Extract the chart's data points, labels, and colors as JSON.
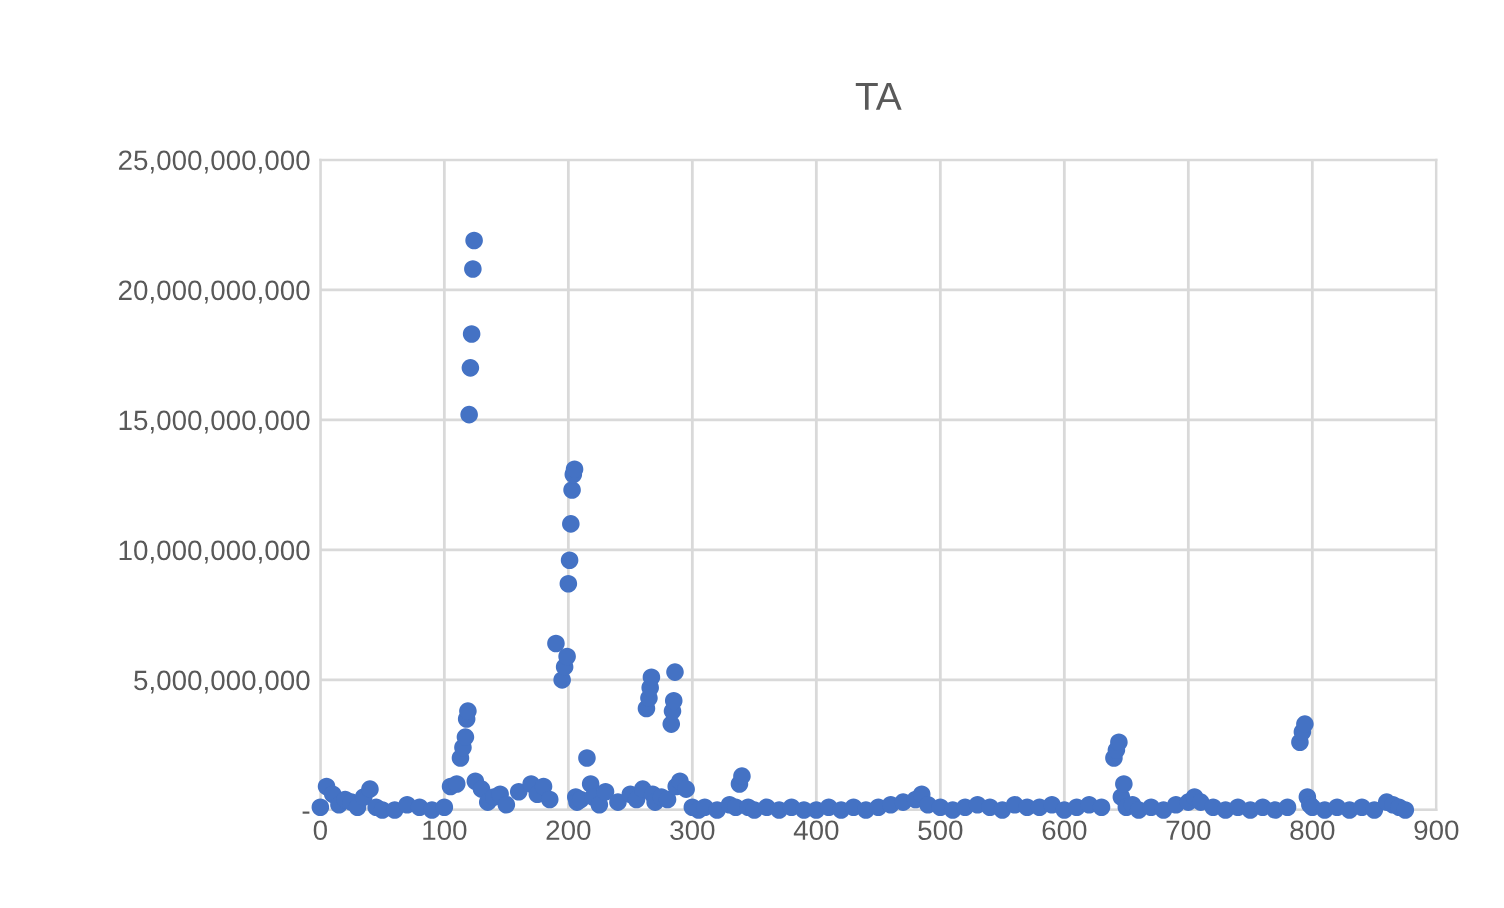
{
  "chart_data": {
    "type": "scatter",
    "title": "TA",
    "series": [
      {
        "color": "#4472c4",
        "x": [
          0,
          5,
          10,
          15,
          20,
          25,
          30,
          35,
          40,
          45,
          50,
          60,
          70,
          80,
          90,
          100,
          105,
          110,
          113,
          115,
          117,
          118,
          119,
          120,
          121,
          122,
          123,
          124,
          125,
          130,
          135,
          140,
          145,
          150,
          160,
          170,
          175,
          180,
          185,
          190,
          195,
          197,
          199,
          200,
          201,
          202,
          203,
          204,
          205,
          206,
          207,
          210,
          215,
          218,
          220,
          225,
          230,
          240,
          250,
          255,
          260,
          263,
          265,
          266,
          267,
          268,
          270,
          275,
          280,
          283,
          284,
          285,
          286,
          287,
          290,
          295,
          300,
          305,
          310,
          320,
          330,
          335,
          338,
          340,
          345,
          350,
          360,
          370,
          380,
          390,
          400,
          410,
          420,
          430,
          440,
          450,
          460,
          470,
          480,
          485,
          490,
          500,
          510,
          520,
          530,
          540,
          550,
          560,
          570,
          580,
          590,
          600,
          610,
          620,
          630,
          640,
          642,
          644,
          646,
          648,
          650,
          655,
          660,
          670,
          680,
          690,
          700,
          705,
          710,
          720,
          730,
          740,
          750,
          760,
          770,
          780,
          790,
          792,
          794,
          796,
          798,
          800,
          810,
          820,
          830,
          840,
          850,
          860,
          865,
          870,
          875
        ],
        "values": [
          100000000.0,
          900000000.0,
          600000000.0,
          200000000.0,
          400000000.0,
          300000000.0,
          100000000.0,
          500000000.0,
          800000000.0,
          100000000.0,
          0,
          0,
          200000000.0,
          100000000.0,
          0,
          100000000.0,
          900000000.0,
          1000000000.0,
          2000000000.0,
          2400000000.0,
          2800000000.0,
          3500000000.0,
          3800000000.0,
          15200000000.0,
          17000000000.0,
          18300000000.0,
          20800000000.0,
          21900000000.0,
          1100000000.0,
          800000000.0,
          300000000.0,
          500000000.0,
          600000000.0,
          200000000.0,
          700000000.0,
          1000000000.0,
          600000000.0,
          900000000.0,
          400000000.0,
          6400000000.0,
          5000000000.0,
          5500000000.0,
          5900000000.0,
          8700000000.0,
          9600000000.0,
          11000000000.0,
          12300000000.0,
          12900000000.0,
          13100000000.0,
          500000000.0,
          300000000.0,
          400000000.0,
          2000000000.0,
          1000000000.0,
          500000000.0,
          200000000.0,
          700000000.0,
          300000000.0,
          600000000.0,
          400000000.0,
          800000000.0,
          3900000000.0,
          4300000000.0,
          4700000000.0,
          5100000000.0,
          600000000.0,
          300000000.0,
          500000000.0,
          400000000.0,
          3300000000.0,
          3800000000.0,
          4200000000.0,
          5300000000.0,
          900000000.0,
          1100000000.0,
          800000000.0,
          100000000.0,
          0,
          100000000.0,
          0,
          200000000.0,
          100000000.0,
          1000000000.0,
          1300000000.0,
          100000000.0,
          0,
          100000000.0,
          0,
          100000000.0,
          0,
          0,
          100000000.0,
          0,
          100000000.0,
          0,
          100000000.0,
          200000000.0,
          300000000.0,
          400000000.0,
          600000000.0,
          200000000.0,
          100000000.0,
          0,
          100000000.0,
          200000000.0,
          100000000.0,
          0,
          200000000.0,
          100000000.0,
          100000000.0,
          200000000.0,
          0,
          100000000.0,
          200000000.0,
          100000000.0,
          2000000000.0,
          2300000000.0,
          2600000000.0,
          500000000.0,
          1000000000.0,
          100000000.0,
          200000000.0,
          0,
          100000000.0,
          0,
          200000000.0,
          300000000.0,
          500000000.0,
          300000000.0,
          100000000.0,
          0,
          100000000.0,
          0,
          100000000.0,
          0,
          100000000.0,
          2600000000.0,
          3000000000.0,
          3300000000.0,
          500000000.0,
          200000000.0,
          100000000.0,
          0,
          100000000.0,
          0,
          100000000.0,
          0,
          300000000.0,
          200000000.0,
          100000000.0,
          0
        ]
      }
    ],
    "xlim": [
      0,
      900
    ],
    "xticks": [
      0,
      100,
      200,
      300,
      400,
      500,
      600,
      700,
      800,
      900
    ],
    "ylim": [
      0,
      25000000000
    ],
    "yticks": [
      {
        "value": 0,
        "label": "-"
      },
      {
        "value": 5000000000,
        "label": "5,000,000,000"
      },
      {
        "value": 10000000000,
        "label": "10,000,000,000"
      },
      {
        "value": 15000000000,
        "label": "15,000,000,000"
      },
      {
        "value": 20000000000,
        "label": "20,000,000,000"
      },
      {
        "value": 25000000000,
        "label": "25,000,000,000"
      }
    ],
    "grid": true,
    "marker": "circle"
  }
}
